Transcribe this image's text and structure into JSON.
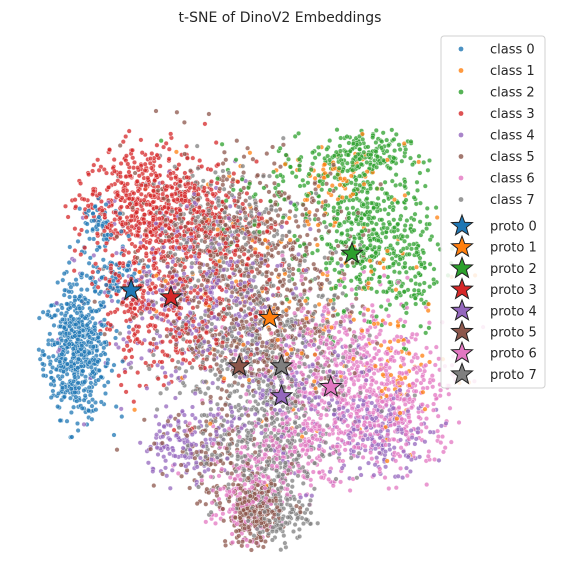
{
  "chart_data": {
    "type": "scatter",
    "title": "t-SNE of DinoV2 Embeddings",
    "xlabel": "",
    "ylabel": "",
    "axes_visible": false,
    "grid": false,
    "legend_position": "right",
    "xlim": [
      -100,
      100
    ],
    "ylim": [
      -100,
      100
    ],
    "series": [
      {
        "name": "class 0",
        "color": "#1f77b4",
        "marker": "dot"
      },
      {
        "name": "class 1",
        "color": "#ff7f0e",
        "marker": "dot"
      },
      {
        "name": "class 2",
        "color": "#2ca02c",
        "marker": "dot"
      },
      {
        "name": "class 3",
        "color": "#d62728",
        "marker": "dot"
      },
      {
        "name": "class 4",
        "color": "#9467bd",
        "marker": "dot"
      },
      {
        "name": "class 5",
        "color": "#8c564b",
        "marker": "dot"
      },
      {
        "name": "class 6",
        "color": "#e377c2",
        "marker": "dot"
      },
      {
        "name": "class 7",
        "color": "#7f7f7f",
        "marker": "dot"
      }
    ],
    "clusters": [
      {
        "class": 0,
        "regions": [
          [
            -80,
            -15,
            10,
            20,
            600
          ],
          [
            -70,
            40,
            8,
            10,
            60
          ],
          [
            -65,
            18,
            10,
            8,
            80
          ]
        ]
      },
      {
        "class": 1,
        "regions": [
          [
            15,
            5,
            45,
            50,
            180
          ],
          [
            30,
            62,
            12,
            8,
            50
          ],
          [
            55,
            -20,
            10,
            15,
            40
          ]
        ]
      },
      {
        "class": 2,
        "regions": [
          [
            45,
            35,
            18,
            22,
            420
          ],
          [
            40,
            70,
            15,
            8,
            200
          ],
          [
            62,
            20,
            8,
            20,
            80
          ],
          [
            15,
            55,
            25,
            15,
            80
          ]
        ]
      },
      {
        "class": 3,
        "regions": [
          [
            -50,
            50,
            22,
            18,
            620
          ],
          [
            -40,
            5,
            20,
            25,
            320
          ],
          [
            -15,
            30,
            20,
            20,
            160
          ],
          [
            -60,
            10,
            10,
            15,
            60
          ]
        ]
      },
      {
        "class": 4,
        "regions": [
          [
            -30,
            10,
            30,
            30,
            380
          ],
          [
            10,
            -35,
            25,
            25,
            200
          ],
          [
            50,
            -50,
            15,
            12,
            180
          ],
          [
            -35,
            -55,
            12,
            10,
            120
          ]
        ]
      },
      {
        "class": 5,
        "regions": [
          [
            -10,
            30,
            35,
            30,
            540
          ],
          [
            0,
            -10,
            25,
            20,
            280
          ],
          [
            -5,
            -85,
            8,
            10,
            260
          ],
          [
            -20,
            -60,
            20,
            15,
            120
          ]
        ]
      },
      {
        "class": 6,
        "regions": [
          [
            35,
            -25,
            25,
            25,
            600
          ],
          [
            60,
            -40,
            15,
            20,
            180
          ],
          [
            10,
            -60,
            25,
            15,
            240
          ],
          [
            -10,
            -80,
            10,
            12,
            120
          ]
        ]
      },
      {
        "class": 7,
        "regions": [
          [
            0,
            -10,
            30,
            25,
            440
          ],
          [
            0,
            -55,
            20,
            20,
            360
          ],
          [
            -20,
            40,
            25,
            20,
            240
          ],
          [
            5,
            -85,
            10,
            10,
            140
          ]
        ]
      }
    ],
    "prototypes": [
      {
        "name": "proto 0",
        "color": "#1f77b4",
        "x": -57,
        "y": 12
      },
      {
        "name": "proto 1",
        "color": "#ff7f0e",
        "x": 2,
        "y": 0
      },
      {
        "name": "proto 2",
        "color": "#2ca02c",
        "x": 37,
        "y": 28
      },
      {
        "name": "proto 3",
        "color": "#d62728",
        "x": -40,
        "y": 9
      },
      {
        "name": "proto 4",
        "color": "#9467bd",
        "x": 7,
        "y": -34
      },
      {
        "name": "proto 5",
        "color": "#8c564b",
        "x": -11,
        "y": -21
      },
      {
        "name": "proto 6",
        "color": "#e377c2",
        "x": 28,
        "y": -30
      },
      {
        "name": "proto 7",
        "color": "#7f7f7f",
        "x": 7,
        "y": -21
      }
    ]
  }
}
